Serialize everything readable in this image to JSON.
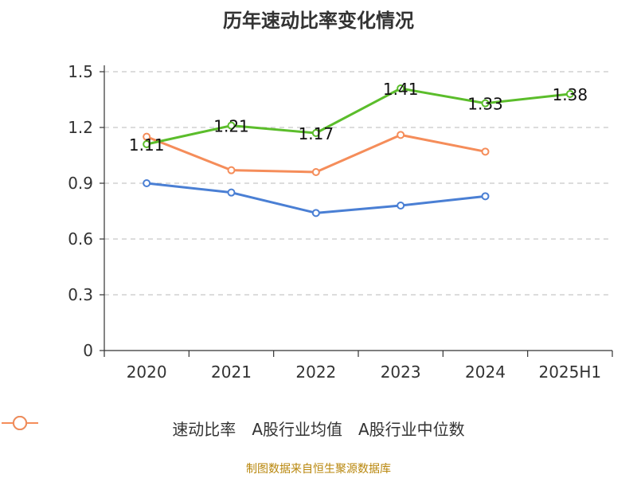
{
  "chart_data": {
    "type": "line",
    "title": "历年速动比率变化情况",
    "xlabel": "",
    "ylabel": "",
    "categories": [
      "2020",
      "2021",
      "2022",
      "2023",
      "2024",
      "2025H1"
    ],
    "ylim": [
      0,
      1.5
    ],
    "yticks": [
      0,
      0.3,
      0.6,
      0.9,
      1.2,
      1.5
    ],
    "ytick_labels": [
      "0",
      "0.3",
      "0.6",
      "0.9",
      "1.2",
      "1.5"
    ],
    "grid": true,
    "legend_position": "bottom",
    "series": [
      {
        "name": "速动比率",
        "color": "#5bbd2b",
        "values": [
          1.11,
          1.21,
          1.17,
          1.41,
          1.33,
          1.38
        ],
        "labels": [
          "1.11",
          "1.21",
          "1.17",
          "1.41",
          "1.33",
          "1.38"
        ]
      },
      {
        "name": "A股行业均值",
        "color": "#4a7fd4",
        "values": [
          0.9,
          0.85,
          0.74,
          0.78,
          0.83,
          null
        ]
      },
      {
        "name": "A股行业中位数",
        "color": "#f58d5a",
        "values": [
          1.15,
          0.97,
          0.96,
          1.16,
          1.07,
          null
        ]
      }
    ]
  },
  "source": "制图数据来自恒生聚源数据库"
}
